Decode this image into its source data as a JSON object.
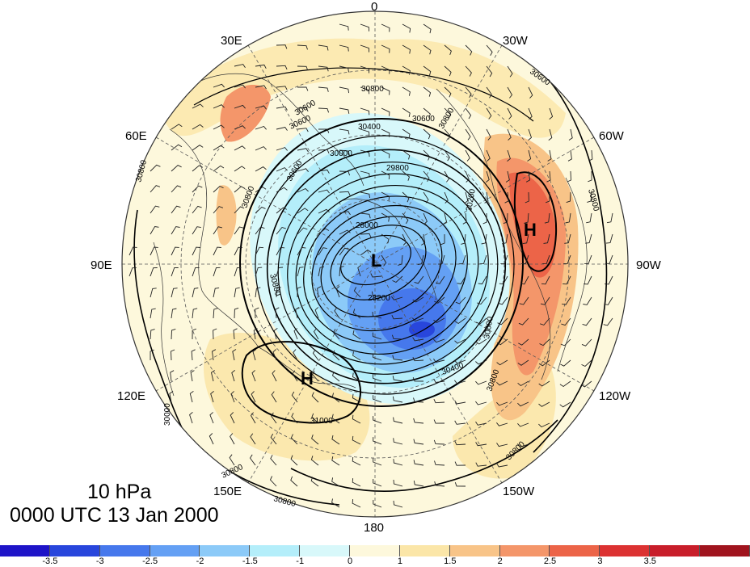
{
  "title": {
    "level": "10 hPa",
    "time": "0000 UTC 13 Jan 2000"
  },
  "longitude_labels": {
    "top": "0",
    "top_right_30": "30W",
    "top_left_30": "30E",
    "right_60": "60W",
    "left_60": "60E",
    "right_90": "90W",
    "left_90": "90E",
    "right_120": "120W",
    "left_120": "120E",
    "right_150": "150W",
    "left_150": "150E",
    "bottom": "180"
  },
  "centers": {
    "low": "L",
    "high_west": "H",
    "high_east": "H"
  },
  "contour_labels": {
    "a": "30800",
    "b": "30600",
    "c": "30400",
    "d": "30000",
    "e": "29800",
    "f": "30600",
    "g": "30800",
    "h": "30600",
    "i": "30800",
    "j": "30200",
    "k": "28000",
    "l": "28200",
    "m": "30400",
    "n": "30600",
    "o": "30800",
    "p": "31000",
    "q": "30800",
    "r": "30800",
    "s": "30800",
    "t": "30800",
    "u": "30600",
    "v": "30800",
    "w": "30800",
    "x": "30600",
    "y": "30000"
  },
  "colorbar": {
    "colors": [
      "#1e14c8",
      "#2846dc",
      "#4678ec",
      "#64a0f4",
      "#8ccaf8",
      "#b4eefa",
      "#d8f8fa",
      "#fdf8dc",
      "#fbe6a8",
      "#f8c488",
      "#f4966a",
      "#ec6448",
      "#dc3232",
      "#c81e2a",
      "#a0141e"
    ],
    "ticks": [
      "-3.5",
      "-3",
      "-2.5",
      "-2",
      "-1.5",
      "-1",
      "0",
      "1",
      "1.5",
      "2",
      "2.5",
      "3",
      "3.5"
    ]
  }
}
